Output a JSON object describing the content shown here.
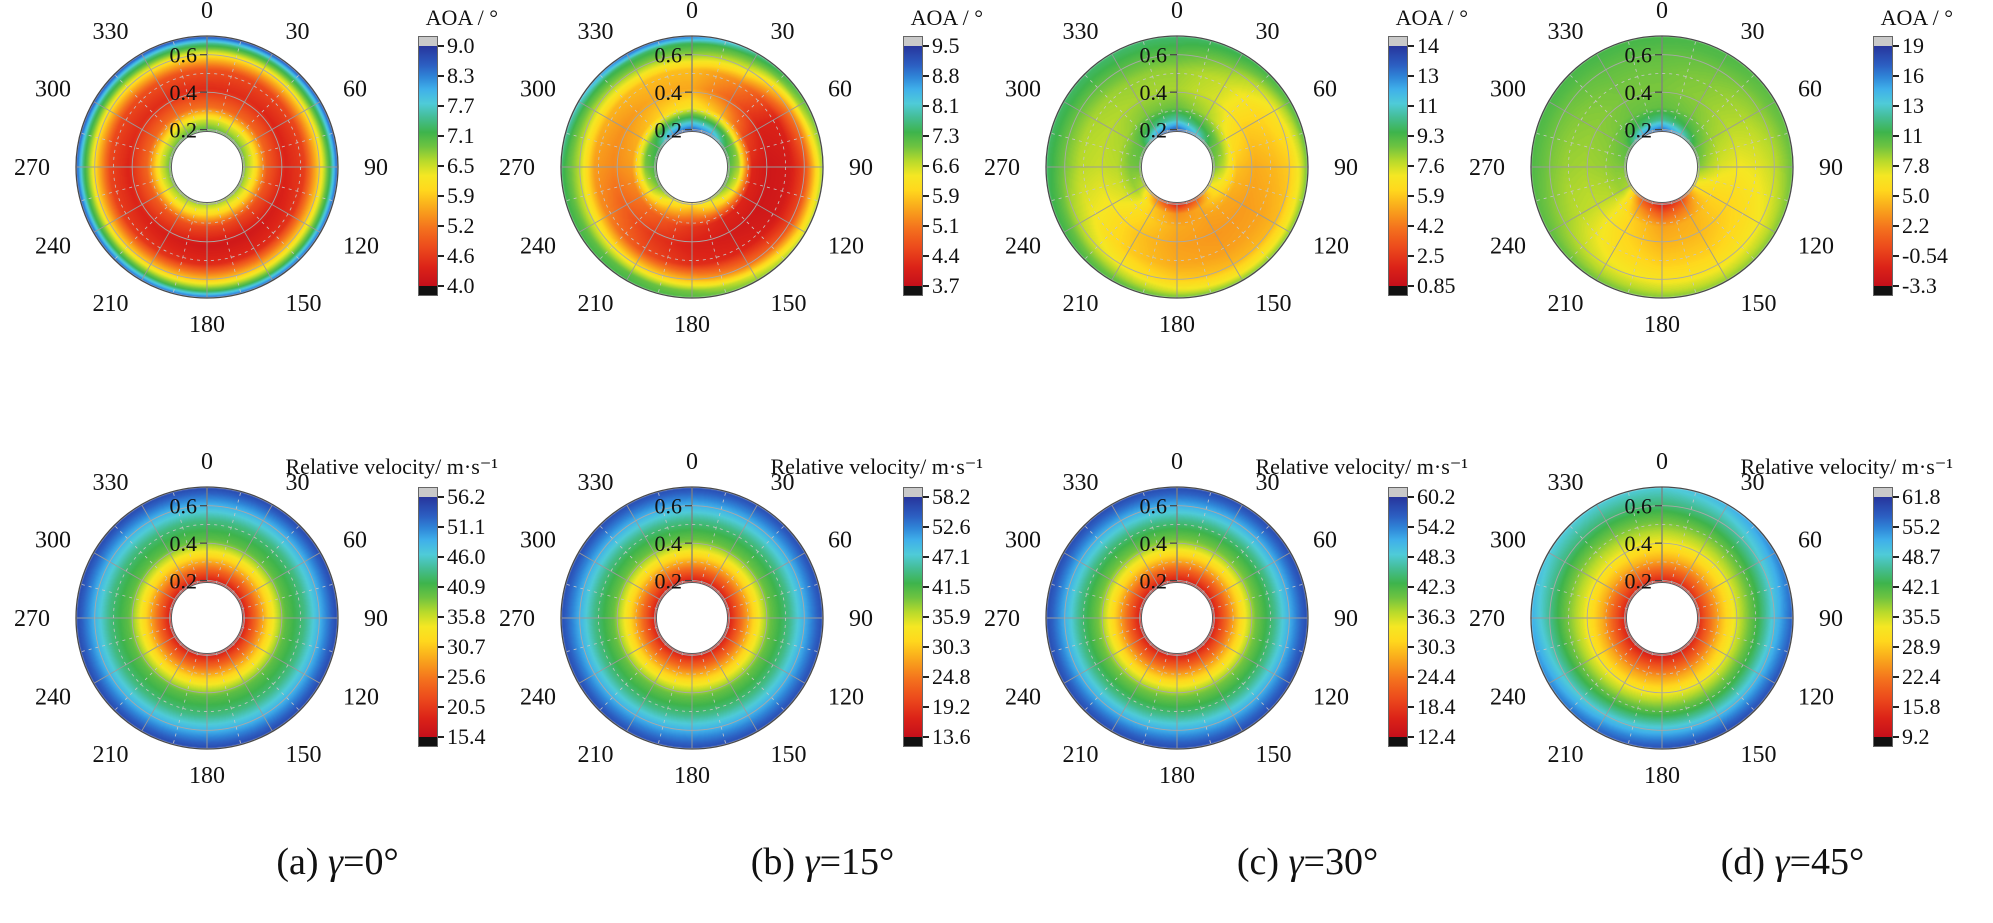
{
  "figure": {
    "description_rows": [
      "AOA polar contour maps",
      "Relative velocity polar contour maps"
    ]
  },
  "colors": {
    "colormap": [
      [
        0.0,
        "#c40f1a"
      ],
      [
        0.08,
        "#dc2318"
      ],
      [
        0.16,
        "#ec4a1c"
      ],
      [
        0.24,
        "#f4711d"
      ],
      [
        0.32,
        "#f9a41c"
      ],
      [
        0.4,
        "#ffd81d"
      ],
      [
        0.46,
        "#f5e723"
      ],
      [
        0.52,
        "#b8da2b"
      ],
      [
        0.58,
        "#6fc340"
      ],
      [
        0.64,
        "#3eb44c"
      ],
      [
        0.7,
        "#44bd92"
      ],
      [
        0.76,
        "#4fcbd8"
      ],
      [
        0.82,
        "#3fb0ea"
      ],
      [
        0.87,
        "#2f86d8"
      ],
      [
        0.92,
        "#2c5fc2"
      ],
      [
        1.0,
        "#27359c"
      ]
    ],
    "over_color": "#c9c9c9",
    "under_color": "#111111",
    "text": "#111111",
    "grid_solid": "#a8a8a8",
    "grid_dashed": "#c6c6c6",
    "spoke": "#9a9a9a",
    "outline": "#4a4a4a"
  },
  "polar_axes": {
    "angle_labels": [
      "0",
      "30",
      "60",
      "90",
      "120",
      "150",
      "180",
      "210",
      "240",
      "270",
      "300",
      "330"
    ],
    "radial_tick_labels": [
      "0.2",
      "0.4",
      "0.6"
    ],
    "radial_tick_values": [
      0.2,
      0.4,
      0.6
    ],
    "r_inner": 0.19,
    "r_outer": 0.7,
    "grid_radii_solid": [
      0.2,
      0.4,
      0.6
    ],
    "grid_radii_dashed": [
      0.3,
      0.5
    ],
    "sample_radii": [
      0.19,
      0.25,
      0.32,
      0.42,
      0.52,
      0.6,
      0.66,
      0.7
    ],
    "sample_angles_deg": [
      0,
      30,
      60,
      90,
      120,
      150,
      180,
      210,
      240,
      270,
      300,
      330
    ]
  },
  "captions": [
    {
      "prefix": "(a) ",
      "symbol": "γ",
      "suffix": "=0°"
    },
    {
      "prefix": "(b) ",
      "symbol": "γ",
      "suffix": "=15°"
    },
    {
      "prefix": "(c) ",
      "symbol": "γ",
      "suffix": "=30°"
    },
    {
      "prefix": "(d) ",
      "symbol": "γ",
      "suffix": "=45°"
    }
  ],
  "chart_data": [
    {
      "id": "aoa-gamma-0",
      "type": "polar_contour",
      "quantity": "AOA",
      "title": "AOA / °",
      "vmin": 4.0,
      "vmax": 9.0,
      "colorbar_ticks": [
        "9.0",
        "8.3",
        "7.7",
        "7.1",
        "6.5",
        "5.9",
        "5.2",
        "4.6",
        "4.0"
      ],
      "values": [
        [
          7.1,
          7.0,
          7.0,
          6.9,
          6.9,
          6.8,
          6.8,
          6.8,
          6.9,
          7.0,
          7.0,
          7.1
        ],
        [
          6.5,
          6.4,
          6.4,
          6.3,
          6.2,
          6.1,
          6.1,
          6.2,
          6.3,
          6.4,
          6.4,
          6.5
        ],
        [
          5.2,
          5.1,
          5.1,
          5.0,
          4.9,
          4.8,
          4.8,
          4.9,
          5.0,
          5.1,
          5.1,
          5.2
        ],
        [
          4.5,
          4.5,
          4.4,
          4.4,
          4.3,
          4.2,
          4.2,
          4.3,
          4.4,
          4.4,
          4.5,
          4.5
        ],
        [
          4.9,
          4.8,
          4.8,
          4.7,
          4.6,
          4.5,
          4.5,
          4.6,
          4.7,
          4.8,
          4.8,
          4.9
        ],
        [
          6.2,
          6.1,
          6.1,
          6.0,
          5.9,
          5.8,
          5.8,
          5.9,
          6.0,
          6.1,
          6.1,
          6.2
        ],
        [
          7.5,
          7.4,
          7.4,
          7.3,
          7.2,
          7.1,
          7.1,
          7.2,
          7.3,
          7.4,
          7.4,
          7.5
        ],
        [
          8.9,
          8.9,
          8.8,
          8.8,
          8.7,
          8.7,
          8.7,
          8.7,
          8.8,
          8.8,
          8.9,
          8.9
        ]
      ]
    },
    {
      "id": "aoa-gamma-15",
      "type": "polar_contour",
      "quantity": "AOA",
      "title": "AOA / °",
      "vmin": 3.7,
      "vmax": 9.5,
      "colorbar_ticks": [
        "9.5",
        "8.8",
        "8.1",
        "7.3",
        "6.6",
        "5.9",
        "5.1",
        "4.4",
        "3.7"
      ],
      "values": [
        [
          9.3,
          8.8,
          7.6,
          7.3,
          7.2,
          6.8,
          6.2,
          6.6,
          7.2,
          7.4,
          7.6,
          9.0
        ],
        [
          7.8,
          7.5,
          7.0,
          6.8,
          6.4,
          5.8,
          5.4,
          5.8,
          6.6,
          7.0,
          7.2,
          7.6
        ],
        [
          6.3,
          5.7,
          4.6,
          4.2,
          4.2,
          4.2,
          4.4,
          4.8,
          5.2,
          5.5,
          5.7,
          6.0
        ],
        [
          5.6,
          4.9,
          4.1,
          3.9,
          3.9,
          4.0,
          4.1,
          4.4,
          4.9,
          5.3,
          5.4,
          5.6
        ],
        [
          5.8,
          5.3,
          4.2,
          4.0,
          4.0,
          4.2,
          4.3,
          4.7,
          5.3,
          5.5,
          5.7,
          5.8
        ],
        [
          6.9,
          6.5,
          5.3,
          4.6,
          4.6,
          5.1,
          5.7,
          6.1,
          6.5,
          6.7,
          6.7,
          6.9
        ],
        [
          7.5,
          7.2,
          6.8,
          6.0,
          5.9,
          6.5,
          7.0,
          7.2,
          7.2,
          7.2,
          7.4,
          7.6
        ],
        [
          9.0,
          7.8,
          7.2,
          6.9,
          6.7,
          7.0,
          7.3,
          7.4,
          7.4,
          7.6,
          8.2,
          9.2
        ]
      ]
    },
    {
      "id": "aoa-gamma-30",
      "type": "polar_contour",
      "quantity": "AOA",
      "title": "AOA / °",
      "vmin": 0.85,
      "vmax": 14,
      "colorbar_ticks": [
        "14",
        "13",
        "11",
        "9.3",
        "7.6",
        "5.9",
        "4.2",
        "2.5",
        "0.85"
      ],
      "values": [
        [
          13.6,
          11.5,
          9.0,
          8.6,
          7.0,
          3.2,
          1.3,
          3.8,
          7.6,
          8.6,
          9.0,
          12.5
        ],
        [
          10.5,
          9.4,
          8.4,
          7.6,
          6.4,
          5.2,
          4.6,
          5.8,
          8.0,
          8.4,
          8.6,
          9.8
        ],
        [
          8.6,
          7.9,
          6.6,
          5.7,
          5.2,
          5.0,
          5.2,
          6.0,
          7.2,
          7.7,
          7.9,
          8.4
        ],
        [
          7.9,
          7.3,
          5.9,
          5.2,
          4.9,
          4.8,
          5.0,
          5.7,
          6.8,
          7.5,
          7.7,
          7.9
        ],
        [
          8.1,
          7.5,
          6.1,
          5.5,
          5.1,
          5.0,
          5.2,
          5.9,
          7.0,
          7.7,
          7.9,
          8.1
        ],
        [
          8.8,
          8.1,
          6.8,
          5.9,
          5.5,
          5.5,
          5.9,
          6.8,
          7.7,
          8.4,
          8.6,
          8.8
        ],
        [
          9.4,
          9.0,
          8.1,
          7.2,
          6.8,
          6.8,
          7.2,
          8.1,
          8.8,
          9.2,
          9.3,
          9.4
        ],
        [
          9.7,
          9.5,
          9.0,
          8.6,
          8.4,
          8.4,
          8.6,
          9.0,
          9.3,
          9.6,
          9.6,
          9.7
        ]
      ]
    },
    {
      "id": "aoa-gamma-45",
      "type": "polar_contour",
      "quantity": "AOA",
      "title": "AOA / °",
      "vmin": -3.3,
      "vmax": 19,
      "colorbar_ticks": [
        "19",
        "16",
        "13",
        "11",
        "7.8",
        "5.0",
        "2.2",
        "-0.54",
        "-3.3"
      ],
      "values": [
        [
          17.8,
          14.5,
          10.5,
          9.5,
          6.5,
          -0.5,
          -2.4,
          0.5,
          8.5,
          9.5,
          10.5,
          16.0
        ],
        [
          12.5,
          11.0,
          9.5,
          8.5,
          6.0,
          2.5,
          1.0,
          3.5,
          8.8,
          9.3,
          9.8,
          11.5
        ],
        [
          10.0,
          9.5,
          8.7,
          7.5,
          5.6,
          4.3,
          3.8,
          5.4,
          8.3,
          8.9,
          9.3,
          9.8
        ],
        [
          9.5,
          9.1,
          8.3,
          7.0,
          5.6,
          4.7,
          4.5,
          5.8,
          8.1,
          8.7,
          9.1,
          9.5
        ],
        [
          9.7,
          9.3,
          8.5,
          7.4,
          6.2,
          5.4,
          5.4,
          6.4,
          8.3,
          8.9,
          9.3,
          9.7
        ],
        [
          10.1,
          9.7,
          9.1,
          8.1,
          7.0,
          6.4,
          6.6,
          7.4,
          8.9,
          9.5,
          9.7,
          10.1
        ],
        [
          10.6,
          10.4,
          9.8,
          9.1,
          8.3,
          7.9,
          8.1,
          8.7,
          9.6,
          10.2,
          10.4,
          10.6
        ],
        [
          10.8,
          10.6,
          10.2,
          9.8,
          9.4,
          9.2,
          9.4,
          9.8,
          10.2,
          10.6,
          10.7,
          10.8
        ]
      ]
    },
    {
      "id": "vel-gamma-0",
      "type": "polar_contour",
      "quantity": "Relative velocity",
      "title": "Relative velocity/ m·s⁻¹",
      "vmin": 15.4,
      "vmax": 56.2,
      "colorbar_ticks": [
        "56.2",
        "51.1",
        "46.0",
        "40.9",
        "35.8",
        "30.7",
        "25.6",
        "20.5",
        "15.4"
      ],
      "values": [
        17.5,
        23.5,
        31,
        40,
        43.5,
        48.5,
        52.5,
        55
      ]
    },
    {
      "id": "vel-gamma-15",
      "type": "polar_contour",
      "quantity": "Relative velocity",
      "title": "Relative velocity/ m·s⁻¹",
      "vmin": 13.6,
      "vmax": 58.2,
      "colorbar_ticks": [
        "58.2",
        "52.6",
        "47.1",
        "41.5",
        "35.9",
        "30.3",
        "24.8",
        "19.2",
        "13.6"
      ],
      "values": [
        16,
        22.5,
        30.5,
        40,
        44.5,
        50,
        54,
        56.5
      ]
    },
    {
      "id": "vel-gamma-30",
      "type": "polar_contour",
      "quantity": "Relative velocity",
      "title": "Relative velocity/ m·s⁻¹",
      "vmin": 12.4,
      "vmax": 60.2,
      "colorbar_ticks": [
        "60.2",
        "54.2",
        "48.3",
        "42.3",
        "36.3",
        "30.3",
        "24.4",
        "18.4",
        "12.4"
      ],
      "values": [
        15,
        21.5,
        30,
        40,
        45.5,
        51.5,
        56,
        58.5
      ]
    },
    {
      "id": "vel-gamma-45",
      "type": "polar_contour",
      "quantity": "Relative velocity",
      "title": "Relative velocity/ m·s⁻¹",
      "vmin": 9.2,
      "vmax": 61.8,
      "colorbar_ticks": [
        "61.8",
        "55.2",
        "48.7",
        "42.1",
        "35.5",
        "28.9",
        "22.4",
        "15.8",
        "9.2"
      ],
      "values": [
        [
          13,
          13,
          14,
          14,
          13,
          12,
          11.5,
          11.5,
          12,
          12.5,
          13,
          13
        ],
        [
          20,
          20,
          21,
          21,
          20,
          18.5,
          18,
          18,
          18.5,
          19,
          19.5,
          20
        ],
        [
          27.5,
          27.5,
          28,
          28.5,
          28,
          26.5,
          26,
          26,
          26.5,
          27,
          27,
          27.5
        ],
        [
          34.5,
          35,
          36,
          36.5,
          36.5,
          35.5,
          35,
          34.5,
          34.5,
          34.5,
          34.5,
          34.5
        ],
        [
          40,
          41,
          42.5,
          43.5,
          44,
          43.5,
          43,
          42.5,
          41.5,
          40.5,
          40,
          40
        ],
        [
          44.5,
          46,
          48.5,
          50.5,
          51.5,
          51.5,
          51,
          50,
          48,
          46,
          45,
          44.5
        ],
        [
          47.5,
          49.5,
          52.5,
          55,
          56.5,
          57,
          56.5,
          55,
          52.5,
          50,
          48,
          47.5
        ],
        [
          49.5,
          52,
          55.5,
          58,
          59.5,
          60,
          59.5,
          58,
          55.5,
          52.5,
          50,
          49.5
        ]
      ]
    }
  ]
}
